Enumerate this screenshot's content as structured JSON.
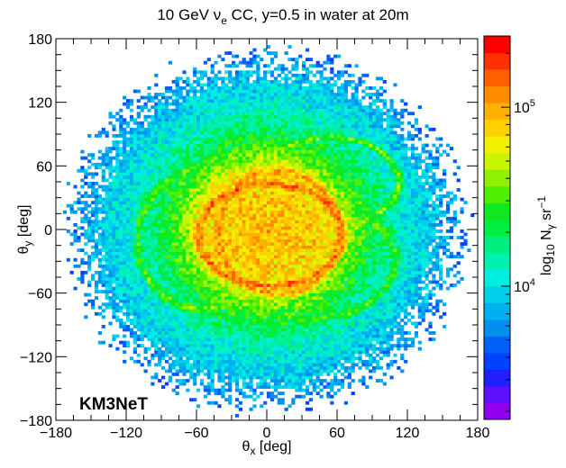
{
  "chart_data": {
    "type": "heatmap",
    "title": "10 GeV ν",
    "title_subscript": "e",
    "title_rest": " CC, y=0.5 in water at 20m",
    "xlabel": "θ",
    "xlabel_subscript": "x",
    "xlabel_rest": " [deg]",
    "ylabel": "θ",
    "ylabel_subscript": "y",
    "ylabel_rest": " [deg]",
    "xlim": [
      -180,
      180
    ],
    "ylim": [
      -180,
      180
    ],
    "x_ticks": [
      -180,
      -120,
      -60,
      0,
      60,
      120,
      180
    ],
    "y_ticks": [
      -180,
      -120,
      -60,
      0,
      60,
      120,
      180
    ],
    "x_tick_labels": [
      "−180",
      "−120",
      "−60",
      "0",
      "60",
      "120",
      "180"
    ],
    "y_tick_labels": [
      "−180",
      "−120",
      "−60",
      "0",
      "60",
      "120",
      "180"
    ],
    "annotation": "KM3NeT",
    "colorbar": {
      "label": "log",
      "label_subscript": "10",
      "label_rest": " N",
      "label_gamma": "γ",
      "label_unit": " sr",
      "label_unit_sup": "−1",
      "scale": "log",
      "range": [
        1800,
        250000
      ],
      "ticks": [
        10000,
        100000
      ],
      "tick_base": "10",
      "tick_exponents": [
        "4",
        "5"
      ],
      "colors": [
        "#9000f0",
        "#6010ff",
        "#2020ff",
        "#0040ff",
        "#0060f8",
        "#0090f0",
        "#00b0f0",
        "#00d0e8",
        "#00eee0",
        "#00f0b0",
        "#00f080",
        "#00ee40",
        "#10e820",
        "#50ee00",
        "#90f000",
        "#c8f500",
        "#f0f000",
        "#ffd000",
        "#ffb000",
        "#ff8c00",
        "#ff6000",
        "#ff3000",
        "#ff0000"
      ]
    },
    "distribution": {
      "description_values": "intensity vs angle",
      "outer_radius": 170,
      "levels": [
        {
          "r": 170,
          "level": 0.22
        },
        {
          "r": 145,
          "level": 0.3
        },
        {
          "r": 115,
          "level": 0.38
        },
        {
          "r": 90,
          "level": 0.5
        },
        {
          "r": 70,
          "level": 0.62
        },
        {
          "r": 55,
          "level": 0.74
        },
        {
          "r": 0,
          "level": 0.8
        }
      ],
      "rings": [
        {
          "cx": 3,
          "cy": -5,
          "rx": 62,
          "ry": 48,
          "level": 0.88
        },
        {
          "cx": 10,
          "cy": -3,
          "rx": 52,
          "ry": 58,
          "level": 0.82
        },
        {
          "cx": 55,
          "cy": 45,
          "rx": 58,
          "ry": 42,
          "level": 0.6
        },
        {
          "cx": -55,
          "cy": -10,
          "rx": 55,
          "ry": 65,
          "level": 0.58
        },
        {
          "cx": 35,
          "cy": -30,
          "rx": 75,
          "ry": 55,
          "level": 0.56
        }
      ]
    }
  }
}
